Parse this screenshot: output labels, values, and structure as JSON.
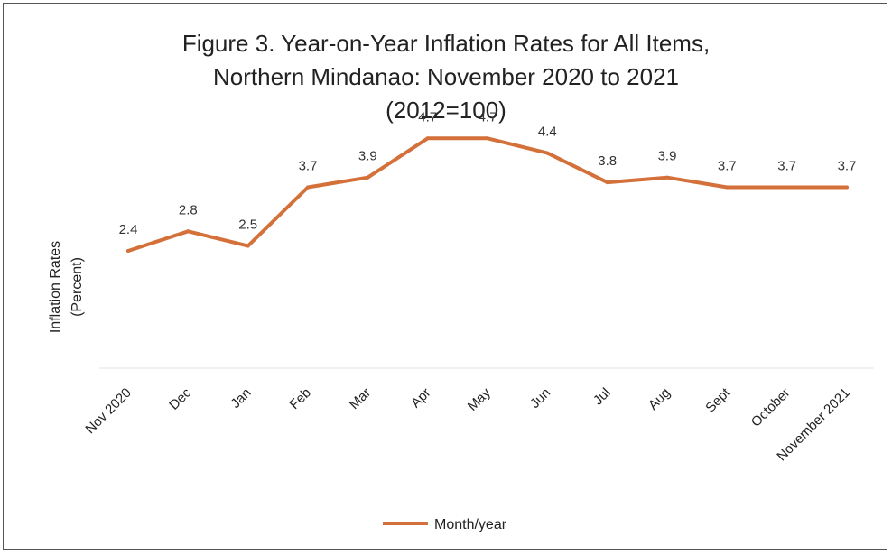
{
  "chart_data": {
    "type": "line",
    "title_lines": [
      "Figure 3.  Year-on-Year Inflation Rates for All Items,",
      "Northern Mindanao: November 2020 to 2021",
      "(2012=100)"
    ],
    "ylabel_lines": [
      "Inflation Rates",
      "(Percent)"
    ],
    "xlabel": "",
    "categories": [
      "Nov 2020",
      "Dec",
      "Jan",
      "Feb",
      "Mar",
      "Apr",
      "May",
      "Jun",
      "Jul",
      "Aug",
      "Sept",
      "October",
      "November 2021"
    ],
    "series": [
      {
        "name": "Month/year",
        "color": "#D4703A",
        "values": [
          2.4,
          2.8,
          2.5,
          3.7,
          3.9,
          4.7,
          4.7,
          4.4,
          3.8,
          3.9,
          3.7,
          3.7,
          3.7
        ],
        "labels": [
          "2.4",
          "2.8",
          "2.5",
          "3.7",
          "3.9",
          "4.7",
          "4.7",
          "4.4",
          "3.8",
          "3.9",
          "3.7",
          "3.7",
          "3.7"
        ]
      }
    ],
    "ylim": [
      0,
      5.5
    ],
    "grid": false,
    "legend_position": "bottom"
  }
}
